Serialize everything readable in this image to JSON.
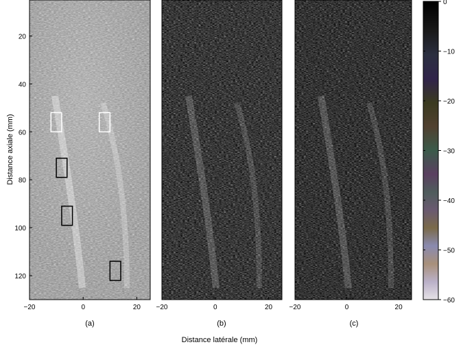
{
  "figure": {
    "panel_labels": [
      "(a)",
      "(b)",
      "(c)"
    ],
    "xlabel": "Distance latérale (mm)",
    "ylabel": "Distance axiale (mm)"
  },
  "chart_data": {
    "type": "heatmap",
    "panels": [
      {
        "label": "(a)",
        "x_ticks": [
          "−20",
          "0",
          "20"
        ],
        "y_ticks": [
          "20",
          "40",
          "60",
          "80",
          "100",
          "120"
        ],
        "xlim": [
          -20,
          25
        ],
        "ylim": [
          130,
          5
        ],
        "style": "gray-speckle-light",
        "roi_boxes": [
          {
            "color": "#ffffff",
            "x": [
              -12,
              -8
            ],
            "y": [
              52,
              60
            ]
          },
          {
            "color": "#ffffff",
            "x": [
              6,
              10
            ],
            "y": [
              52,
              60
            ]
          },
          {
            "color": "#000000",
            "x": [
              -10,
              -6
            ],
            "y": [
              71,
              79
            ]
          },
          {
            "color": "#000000",
            "x": [
              -8,
              -4
            ],
            "y": [
              91,
              99
            ]
          },
          {
            "color": "#000000",
            "x": [
              10,
              14
            ],
            "y": [
              114,
              122
            ]
          }
        ]
      },
      {
        "label": "(b)",
        "x_ticks": [
          "−20",
          "0",
          "20"
        ],
        "xlim": [
          -20,
          25
        ],
        "ylim": [
          130,
          5
        ],
        "style": "dark-speckle"
      },
      {
        "label": "(c)",
        "x_ticks": [
          "−20",
          "0",
          "20"
        ],
        "xlim": [
          -20,
          25
        ],
        "ylim": [
          130,
          5
        ],
        "style": "dark-speckle"
      }
    ],
    "colorbar": {
      "ticks": [
        "0",
        "−10",
        "−20",
        "−30",
        "−40",
        "−50",
        "−60"
      ],
      "range": [
        0,
        -60
      ]
    }
  }
}
